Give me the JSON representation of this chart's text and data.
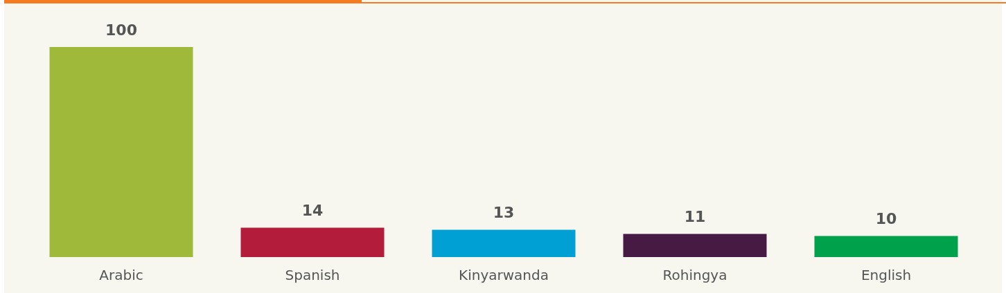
{
  "chart_data": {
    "type": "bar",
    "categories": [
      "Arabic",
      "Spanish",
      "Kinyarwanda",
      "Rohingya",
      "English"
    ],
    "values": [
      100,
      14,
      13,
      11,
      10
    ],
    "colors": [
      "#9fba3a",
      "#b31d3b",
      "#009fd4",
      "#461a42",
      "#00a14b"
    ],
    "data_labels": true
  }
}
